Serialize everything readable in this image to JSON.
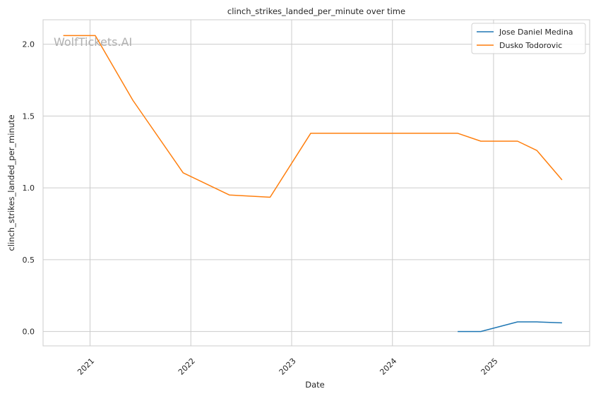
{
  "chart_data": {
    "type": "line",
    "title": "clinch_strikes_landed_per_minute over time",
    "xlabel": "Date",
    "ylabel": "clinch_strikes_landed_per_minute",
    "watermark": "WolfTickets.AI",
    "grid": true,
    "legend_position": "top-right",
    "x_ticks": [
      "2021",
      "2022",
      "2023",
      "2024",
      "2025"
    ],
    "y_ticks": [
      "0.0",
      "0.5",
      "1.0",
      "1.5",
      "2.0"
    ],
    "xlim": [
      "2020-07-15",
      "2025-12-15"
    ],
    "ylim": [
      -0.1,
      2.17
    ],
    "series": [
      {
        "name": "Jose Daniel Medina",
        "color": "#1f77b4",
        "points": [
          {
            "x": "2024-08-24",
            "y": 0.0
          },
          {
            "x": "2024-11-16",
            "y": 0.0
          },
          {
            "x": "2025-03-29",
            "y": 0.067
          },
          {
            "x": "2025-06-07",
            "y": 0.067
          },
          {
            "x": "2025-09-06",
            "y": 0.06
          }
        ]
      },
      {
        "name": "Dusko Todorovic",
        "color": "#ff7f0e",
        "points": [
          {
            "x": "2020-09-26",
            "y": 2.06
          },
          {
            "x": "2021-01-20",
            "y": 2.06
          },
          {
            "x": "2021-06-05",
            "y": 1.61
          },
          {
            "x": "2021-12-04",
            "y": 1.105
          },
          {
            "x": "2022-05-21",
            "y": 0.95
          },
          {
            "x": "2022-10-15",
            "y": 0.935
          },
          {
            "x": "2023-03-11",
            "y": 1.38
          },
          {
            "x": "2024-08-24",
            "y": 1.38
          },
          {
            "x": "2024-11-16",
            "y": 1.325
          },
          {
            "x": "2025-03-29",
            "y": 1.325
          },
          {
            "x": "2025-06-07",
            "y": 1.26
          },
          {
            "x": "2025-09-06",
            "y": 1.055
          }
        ]
      }
    ]
  }
}
